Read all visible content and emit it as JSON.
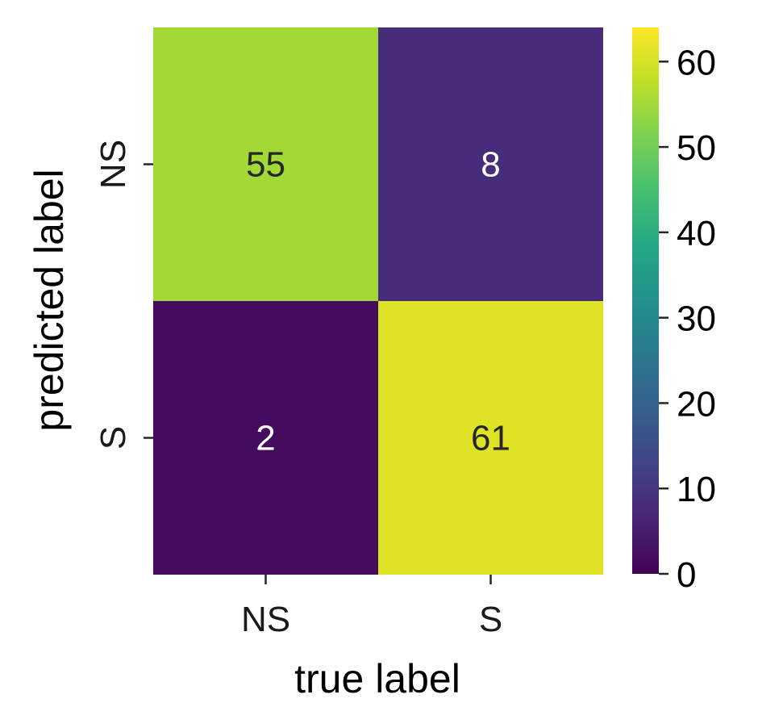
{
  "chart_data": {
    "type": "heatmap",
    "colormap": "viridis",
    "xlabel": "true label",
    "ylabel": "predicted label",
    "x_categories": [
      "NS",
      "S"
    ],
    "y_categories": [
      "NS",
      "S"
    ],
    "values": [
      [
        55,
        8
      ],
      [
        2,
        61
      ]
    ],
    "colorbar": {
      "vmin": 0,
      "vmax": 64,
      "ticks": [
        "0",
        "10",
        "20",
        "30",
        "40",
        "50",
        "60"
      ]
    }
  }
}
